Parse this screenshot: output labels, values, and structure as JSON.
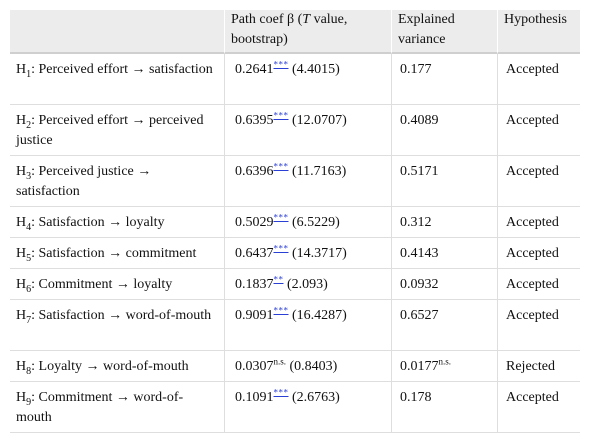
{
  "header": {
    "col1": "",
    "col2_prefix": "Path coef β (",
    "col2_italic": "T",
    "col2_suffix": " value, bootstrap)",
    "col3": "Explained variance",
    "col4": "Hypothesis"
  },
  "rows": [
    {
      "h": "H",
      "n": "1",
      "label": ": Perceived effort → satisfaction",
      "coef": "0.2641",
      "sig": "***",
      "tval": " (4.4015)",
      "var": "0.177",
      "var_sig": "",
      "result": "Accepted"
    },
    {
      "h": "H",
      "n": "2",
      "label": ": Perceived effort → perceived justice",
      "coef": "0.6395",
      "sig": "***",
      "tval": " (12.0707)",
      "var": "0.4089",
      "var_sig": "",
      "result": "Accepted"
    },
    {
      "h": "H",
      "n": "3",
      "label": ": Perceived justice → satisfaction",
      "coef": "0.6396",
      "sig": "***",
      "tval": " (11.7163)",
      "var": "0.5171",
      "var_sig": "",
      "result": "Accepted"
    },
    {
      "h": "H",
      "n": "4",
      "label": ": Satisfaction → loyalty",
      "coef": "0.5029",
      "sig": "***",
      "tval": " (6.5229)",
      "var": "0.312",
      "var_sig": "",
      "result": "Accepted"
    },
    {
      "h": "H",
      "n": "5",
      "label": ": Satisfaction → commitment",
      "coef": "0.6437",
      "sig": "***",
      "tval": " (14.3717)",
      "var": "0.4143",
      "var_sig": "",
      "result": "Accepted"
    },
    {
      "h": "H",
      "n": "6",
      "label": ": Commitment → loyalty",
      "coef": "0.1837",
      "sig": "**",
      "tval": " (2.093)",
      "var": "0.0932",
      "var_sig": "",
      "result": "Accepted"
    },
    {
      "h": "H",
      "n": "7",
      "label": ": Satisfaction → word-of-mouth",
      "coef": "0.9091",
      "sig": "***",
      "tval": " (16.4287)",
      "var": "0.6527",
      "var_sig": "",
      "result": "Accepted"
    },
    {
      "h": "H",
      "n": "8",
      "label": ": Loyalty → word-of-mouth",
      "coef": "0.0307",
      "sig": "n.s.",
      "tval": " (0.8403)",
      "var": "0.0177",
      "var_sig": "n.s.",
      "result": "Rejected"
    },
    {
      "h": "H",
      "n": "9",
      "label": ": Commitment → word-of-mouth",
      "coef": "0.1091",
      "sig": "***",
      "tval": " (2.6763)",
      "var": "0.178",
      "var_sig": "",
      "result": "Accepted"
    }
  ],
  "colors": {
    "header_bg": "#ececec",
    "link": "#2a3fd6",
    "rule": "#dedede"
  }
}
